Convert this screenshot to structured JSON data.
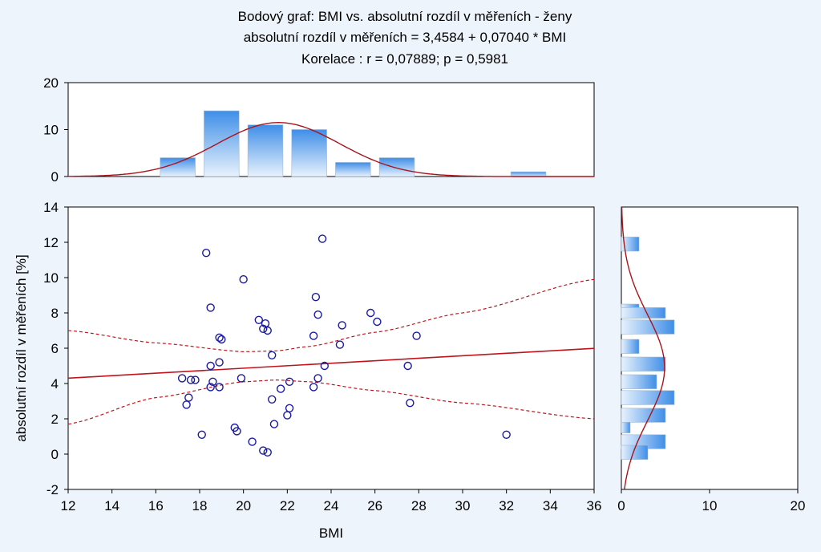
{
  "chart_data": {
    "type": "scatter",
    "title_lines": [
      "Bodový graf: BMI vs. absolutní rozdíl v měřeních - ženy",
      "absolutní rozdíl v měřeních = 3,4584 + 0,07040 * BMI",
      "Korelace :   r = 0,07889; p = 0,5981"
    ],
    "xlabel": "BMI",
    "ylabel": "absolutní rozdíl v měřeních [%]",
    "xlim": [
      12,
      36
    ],
    "ylim": [
      -2,
      14
    ],
    "x_ticks": [
      "12",
      "14",
      "16",
      "18",
      "20",
      "22",
      "24",
      "26",
      "28",
      "30",
      "32",
      "34",
      "36"
    ],
    "y_ticks": [
      "-2",
      "0",
      "2",
      "4",
      "6",
      "8",
      "10",
      "12",
      "14"
    ],
    "regression": {
      "intercept": 3.4584,
      "slope": 0.0704
    },
    "confidence_band": {
      "x": [
        12,
        16,
        20,
        21.5,
        23,
        26,
        30,
        36
      ],
      "upper": [
        7.0,
        6.3,
        5.8,
        5.85,
        6.1,
        6.9,
        8.0,
        9.9
      ],
      "lower": [
        1.7,
        3.2,
        4.1,
        4.2,
        4.1,
        3.6,
        2.9,
        2.0
      ]
    },
    "points": {
      "x": [
        18.3,
        23.6,
        20.0,
        23.3,
        18.5,
        25.8,
        23.4,
        20.7,
        26.1,
        21.0,
        24.5,
        20.9,
        21.1,
        18.9,
        19.0,
        23.2,
        27.9,
        24.4,
        21.3,
        18.9,
        18.5,
        23.7,
        27.5,
        17.2,
        17.6,
        19.9,
        23.4,
        22.1,
        18.6,
        17.8,
        18.5,
        18.9,
        23.2,
        21.7,
        21.3,
        17.5,
        22.1,
        17.4,
        27.6,
        22.0,
        21.4,
        19.6,
        19.7,
        18.1,
        32.0,
        20.4,
        20.9,
        21.1
      ],
      "y": [
        11.4,
        12.2,
        9.9,
        8.9,
        8.3,
        8.0,
        7.9,
        7.6,
        7.5,
        7.4,
        7.3,
        7.1,
        7.0,
        6.6,
        6.5,
        6.7,
        6.7,
        6.2,
        5.6,
        5.2,
        5.0,
        5.0,
        5.0,
        4.3,
        4.2,
        4.3,
        4.3,
        4.1,
        4.1,
        4.2,
        3.8,
        3.8,
        3.8,
        3.7,
        3.1,
        3.2,
        2.6,
        2.8,
        2.9,
        2.2,
        1.7,
        1.5,
        1.3,
        1.1,
        1.1,
        0.7,
        0.2,
        0.1
      ]
    },
    "top_histogram": {
      "ylim": [
        0,
        20
      ],
      "y_ticks": [
        "0",
        "10",
        "20"
      ],
      "bins": [
        {
          "from": 16.2,
          "to": 17.8,
          "count": 4
        },
        {
          "from": 18.2,
          "to": 19.8,
          "count": 14
        },
        {
          "from": 20.2,
          "to": 21.8,
          "count": 11
        },
        {
          "from": 22.2,
          "to": 23.8,
          "count": 10
        },
        {
          "from": 24.2,
          "to": 25.8,
          "count": 3
        },
        {
          "from": 26.2,
          "to": 27.8,
          "count": 4
        },
        {
          "from": 32.2,
          "to": 33.8,
          "count": 1
        }
      ],
      "normal_curve": {
        "mean": 21.6,
        "sd": 2.8,
        "peak": 11.5
      }
    },
    "right_histogram": {
      "xlim": [
        0,
        20
      ],
      "x_ticks": [
        "0",
        "10",
        "20"
      ],
      "bins": [
        {
          "from": 11.5,
          "to": 12.3,
          "count": 2
        },
        {
          "from": 7.7,
          "to": 8.5,
          "count": 2
        },
        {
          "from": 7.7,
          "to": 8.3,
          "count": 5
        },
        {
          "from": 6.8,
          "to": 7.6,
          "count": 6
        },
        {
          "from": 5.7,
          "to": 6.5,
          "count": 2
        },
        {
          "from": 4.7,
          "to": 5.5,
          "count": 5
        },
        {
          "from": 3.7,
          "to": 4.5,
          "count": 4
        },
        {
          "from": 2.8,
          "to": 3.6,
          "count": 6
        },
        {
          "from": 1.8,
          "to": 2.6,
          "count": 5
        },
        {
          "from": 1.2,
          "to": 1.8,
          "count": 1
        },
        {
          "from": 0.3,
          "to": 1.1,
          "count": 5
        },
        {
          "from": -0.3,
          "to": 0.5,
          "count": 3
        }
      ],
      "normal_curve": {
        "mean": 4.9,
        "sd": 3.0,
        "peak": 4.9
      }
    },
    "colors": {
      "point": "#1a1aa0",
      "regression": "#c0141c",
      "curve": "#a8141c",
      "bar_top": "#3f8ee8",
      "bar_bottom": "#e8f2fc",
      "plot_bg": "#ffffff",
      "page_bg": "#eef4fb"
    }
  }
}
